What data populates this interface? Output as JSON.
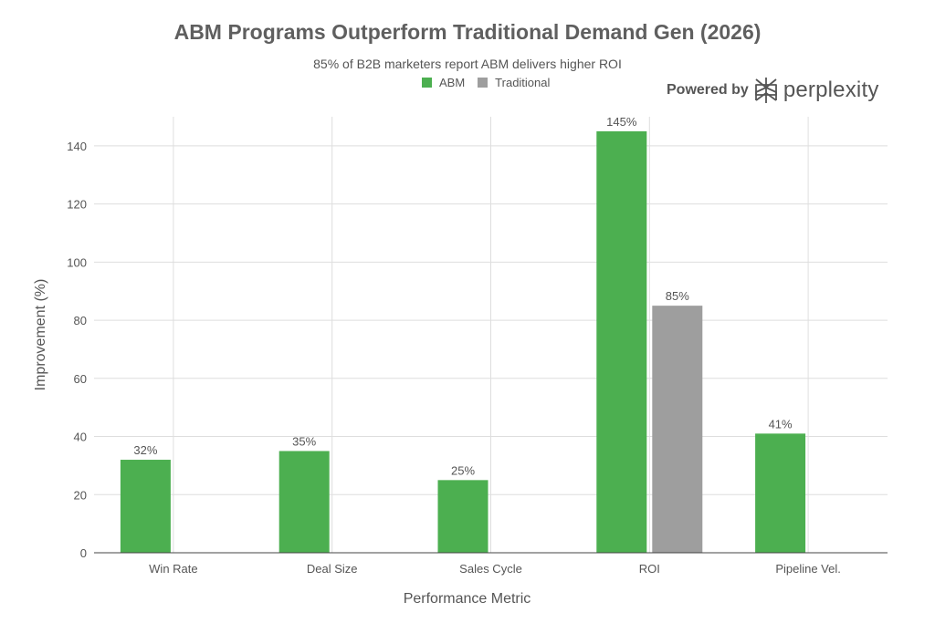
{
  "chart_data": {
    "type": "bar",
    "title": "ABM Programs Outperform Traditional Demand Gen (2026)",
    "subtitle": "85% of B2B marketers report ABM delivers higher ROI",
    "xlabel": "Performance Metric",
    "ylabel": "Improvement (%)",
    "ylim": [
      0,
      150
    ],
    "yticks": [
      0,
      20,
      40,
      60,
      80,
      100,
      120,
      140
    ],
    "grid": true,
    "legend_position": "top-center",
    "categories": [
      "Win Rate",
      "Deal Size",
      "Sales Cycle",
      "ROI",
      "Pipeline Vel."
    ],
    "series": [
      {
        "name": "ABM",
        "color": "#4caf50",
        "values": [
          32,
          35,
          25,
          145,
          41
        ],
        "labels": [
          "32%",
          "35%",
          "25%",
          "145%",
          "41%"
        ]
      },
      {
        "name": "Traditional",
        "color": "#9e9e9e",
        "values": [
          null,
          null,
          null,
          85,
          null
        ],
        "labels": [
          "",
          "",
          "",
          "85%",
          ""
        ]
      }
    ]
  },
  "branding": {
    "powered_by": "Powered by",
    "name": "perplexity",
    "logo_icon": "perplexity-logo-icon"
  }
}
